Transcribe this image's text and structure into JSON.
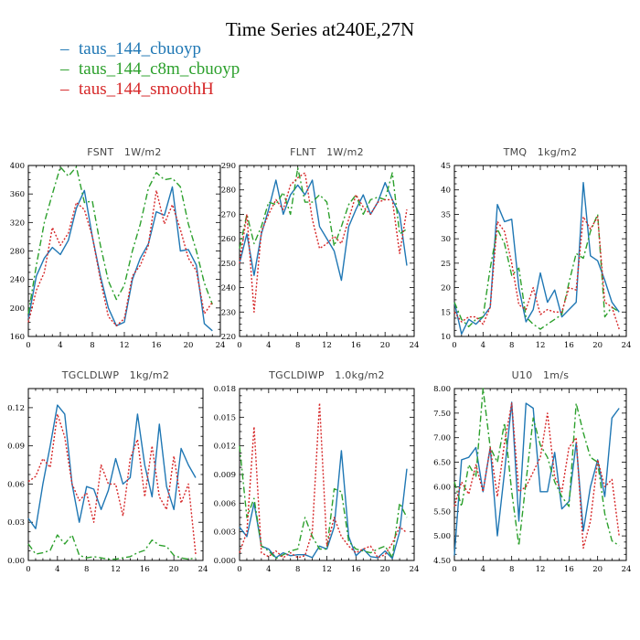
{
  "title": "Time Series at240E,27N",
  "legend": [
    {
      "label": "taus_144_cbuoyp",
      "color": "#1f77b4",
      "dash": "solid"
    },
    {
      "label": "taus_144_c8m_cbuoyp",
      "color": "#2ca02c",
      "dash": "dashdot"
    },
    {
      "label": "taus_144_smoothH",
      "color": "#d62728",
      "dash": "dotted"
    }
  ],
  "chart_data": [
    {
      "type": "line",
      "title": "FSNT 1W/m2",
      "x": [
        0,
        1,
        2,
        3,
        4,
        5,
        6,
        7,
        8,
        9,
        10,
        11,
        12,
        13,
        14,
        15,
        16,
        17,
        18,
        19,
        20,
        21,
        22,
        23
      ],
      "xlim": [
        0,
        24
      ],
      "xticks": [
        0,
        4,
        8,
        12,
        16,
        20,
        24
      ],
      "ylim": [
        160,
        400
      ],
      "yticks": [
        160,
        200,
        240,
        280,
        320,
        360,
        400
      ],
      "yticklabels": [
        "160",
        "200",
        "240",
        "280",
        "320",
        "360",
        "400"
      ],
      "series": [
        {
          "name": "taus_144_cbuoyp",
          "values": [
            185,
            245,
            270,
            285,
            275,
            295,
            340,
            365,
            300,
            245,
            200,
            175,
            180,
            240,
            270,
            290,
            335,
            330,
            370,
            280,
            282,
            260,
            178,
            168
          ]
        },
        {
          "name": "taus_144_c8m_cbuoyp",
          "values": [
            192,
            260,
            320,
            360,
            398,
            385,
            398,
            348,
            350,
            288,
            238,
            212,
            232,
            280,
            318,
            368,
            390,
            380,
            382,
            370,
            318,
            280,
            235,
            205
          ]
        },
        {
          "name": "taus_144_smoothH",
          "values": [
            180,
            225,
            250,
            313,
            288,
            305,
            348,
            338,
            300,
            240,
            188,
            175,
            185,
            245,
            260,
            288,
            365,
            318,
            345,
            310,
            270,
            252,
            192,
            208
          ]
        }
      ]
    },
    {
      "type": "line",
      "title": "FLNT 1W/m2",
      "x": [
        0,
        1,
        2,
        3,
        4,
        5,
        6,
        7,
        8,
        9,
        10,
        11,
        12,
        13,
        14,
        15,
        16,
        17,
        18,
        19,
        20,
        21,
        22,
        23
      ],
      "xlim": [
        0,
        24
      ],
      "xticks": [
        0,
        4,
        8,
        12,
        16,
        20,
        24
      ],
      "ylim": [
        220,
        290
      ],
      "yticks": [
        220,
        230,
        240,
        250,
        260,
        270,
        280,
        290
      ],
      "yticklabels": [
        "220",
        "230",
        "240",
        "250",
        "260",
        "270",
        "280",
        "290"
      ],
      "series": [
        {
          "name": "taus_144_cbuoyp",
          "values": [
            250,
            262,
            245,
            262,
            272,
            284,
            270,
            278,
            282,
            278,
            284,
            265,
            260,
            255,
            243,
            265,
            272,
            278,
            270,
            275,
            283,
            276,
            270,
            249
          ]
        },
        {
          "name": "taus_144_c8m_cbuoyp",
          "values": [
            256,
            270,
            258,
            265,
            275,
            274,
            279,
            270,
            289,
            275,
            275,
            278,
            275,
            257,
            265,
            274,
            278,
            270,
            276,
            277,
            276,
            287,
            262,
            264
          ]
        },
        {
          "name": "taus_144_smoothH",
          "values": [
            250,
            270,
            230,
            263,
            270,
            276,
            272,
            282,
            285,
            287,
            268,
            256,
            258,
            261,
            258,
            268,
            278,
            273,
            270,
            275,
            276,
            276,
            254,
            272
          ]
        }
      ]
    },
    {
      "type": "line",
      "title": "TMQ 1kg/m2",
      "x": [
        0,
        1,
        2,
        3,
        4,
        5,
        6,
        7,
        8,
        9,
        10,
        11,
        12,
        13,
        14,
        15,
        16,
        17,
        18,
        19,
        20,
        21,
        22,
        23
      ],
      "xlim": [
        0,
        24
      ],
      "xticks": [
        0,
        4,
        8,
        12,
        16,
        20,
        24
      ],
      "ylim": [
        10,
        45
      ],
      "yticks": [
        10,
        15,
        20,
        25,
        30,
        35,
        40,
        45
      ],
      "yticklabels": [
        "10",
        "15",
        "20",
        "25",
        "30",
        "35",
        "40",
        "45"
      ],
      "series": [
        {
          "name": "taus_144_cbuoyp",
          "values": [
            17,
            10.5,
            13.5,
            12.5,
            14,
            16,
            37,
            33.5,
            34,
            20,
            13,
            15.5,
            23,
            17,
            19.5,
            14,
            15.5,
            17,
            41.5,
            26.5,
            25.5,
            21.5,
            17,
            15
          ]
        },
        {
          "name": "taus_144_c8m_cbuoyp",
          "values": [
            17,
            13.5,
            12,
            13.5,
            14,
            24,
            32,
            29,
            22.5,
            24,
            14,
            12.5,
            11.5,
            12.5,
            13.5,
            14.5,
            21,
            27,
            26,
            31.5,
            35,
            14,
            16,
            15
          ]
        },
        {
          "name": "taus_144_smoothH",
          "values": [
            15,
            13,
            14,
            14,
            12.5,
            16,
            33.5,
            31.5,
            25,
            16.5,
            15.5,
            20,
            14.5,
            15.5,
            15,
            15,
            20,
            19.5,
            34.5,
            32,
            34.5,
            17,
            16,
            11.5
          ]
        }
      ]
    },
    {
      "type": "line",
      "title": "TGCLDLWP 1kg/m2",
      "x": [
        0,
        1,
        2,
        3,
        4,
        5,
        6,
        7,
        8,
        9,
        10,
        11,
        12,
        13,
        14,
        15,
        16,
        17,
        18,
        19,
        20,
        21,
        22,
        23
      ],
      "xlim": [
        0,
        24
      ],
      "xticks": [
        0,
        4,
        8,
        12,
        16,
        20,
        24
      ],
      "ylim": [
        0,
        0.135
      ],
      "yticks": [
        0,
        0.03,
        0.06,
        0.09,
        0.12
      ],
      "yticklabels": [
        "0.00",
        "0.03",
        "0.06",
        "0.09",
        "0.12"
      ],
      "series": [
        {
          "name": "taus_144_cbuoyp",
          "values": [
            0.033,
            0.025,
            0.06,
            0.09,
            0.122,
            0.115,
            0.06,
            0.03,
            0.058,
            0.056,
            0.04,
            0.055,
            0.08,
            0.06,
            0.065,
            0.115,
            0.075,
            0.05,
            0.107,
            0.058,
            0.04,
            0.088,
            0.075,
            0.065
          ]
        },
        {
          "name": "taus_144_c8m_cbuoyp",
          "values": [
            0.013,
            0.005,
            0.006,
            0.008,
            0.02,
            0.013,
            0.02,
            0.004,
            0.002,
            0.003,
            0.002,
            0.001,
            0.001,
            0.002,
            0.003,
            0.006,
            0.008,
            0.016,
            0.012,
            0.011,
            0.004,
            0.002,
            0.001,
            0.002
          ]
        },
        {
          "name": "taus_144_smoothH",
          "values": [
            0.062,
            0.066,
            0.08,
            0.073,
            0.115,
            0.097,
            0.06,
            0.047,
            0.053,
            0.03,
            0.075,
            0.06,
            0.06,
            0.035,
            0.08,
            0.095,
            0.05,
            0.09,
            0.05,
            0.04,
            0.082,
            0.045,
            0.06,
            0.005
          ]
        }
      ]
    },
    {
      "type": "line",
      "title": "TGCLDIWP 1.0kg/m2",
      "x": [
        0,
        1,
        2,
        3,
        4,
        5,
        6,
        7,
        8,
        9,
        10,
        11,
        12,
        13,
        14,
        15,
        16,
        17,
        18,
        19,
        20,
        21,
        22,
        23
      ],
      "xlim": [
        0,
        24
      ],
      "xticks": [
        0,
        4,
        8,
        12,
        16,
        20,
        24
      ],
      "ylim": [
        0,
        0.018
      ],
      "yticks": [
        0,
        0.003,
        0.006,
        0.009,
        0.012,
        0.015,
        0.018
      ],
      "yticklabels": [
        "0.000",
        "0.003",
        "0.006",
        "0.009",
        "0.012",
        "0.015",
        "0.018"
      ],
      "series": [
        {
          "name": "taus_144_cbuoyp",
          "values": [
            0.0035,
            0.0025,
            0.006,
            0.0015,
            0.0012,
            0.0003,
            0.0008,
            0.0005,
            0.0006,
            0.0006,
            0.0003,
            0.0015,
            0.0012,
            0.0035,
            0.0115,
            0.0025,
            0.0005,
            0.0012,
            0.0004,
            0.0003,
            0.001,
            0.0002,
            0.003,
            0.0096
          ]
        },
        {
          "name": "taus_144_c8m_cbuoyp",
          "values": [
            0.012,
            0.0045,
            0.0065,
            0.0015,
            0.001,
            0.0002,
            0.0006,
            0.001,
            0.0012,
            0.0045,
            0.0025,
            0.0012,
            0.0012,
            0.0075,
            0.0072,
            0.002,
            0.0012,
            0.001,
            0.0008,
            0.0012,
            0.0015,
            0.0003,
            0.006,
            0.0045
          ]
        },
        {
          "name": "taus_144_smoothH",
          "values": [
            0.0008,
            0.003,
            0.014,
            0.0008,
            0.0004,
            0.001,
            0.0003,
            0.0008,
            0.0003,
            0.0005,
            0.003,
            0.0165,
            0.0015,
            0.0045,
            0.0025,
            0.0015,
            0.0008,
            0.0012,
            0.0015,
            0.0003,
            0.0006,
            0.0018,
            0.0035,
            0.0029
          ]
        }
      ]
    },
    {
      "type": "line",
      "title": "U10 1m/s",
      "x": [
        0,
        1,
        2,
        3,
        4,
        5,
        6,
        7,
        8,
        9,
        10,
        11,
        12,
        13,
        14,
        15,
        16,
        17,
        18,
        19,
        20,
        21,
        22,
        23
      ],
      "xlim": [
        0,
        24
      ],
      "xticks": [
        0,
        4,
        8,
        12,
        16,
        20,
        24
      ],
      "ylim": [
        4.5,
        8.0
      ],
      "yticks": [
        4.5,
        5.0,
        5.5,
        6.0,
        6.5,
        7.0,
        7.5,
        8.0
      ],
      "yticklabels": [
        "4.50",
        "5.00",
        "5.50",
        "6.00",
        "6.50",
        "7.00",
        "7.50",
        "8.00"
      ],
      "series": [
        {
          "name": "taus_144_cbuoyp",
          "values": [
            4.6,
            6.55,
            6.6,
            6.8,
            5.9,
            6.8,
            5.0,
            6.3,
            7.72,
            5.3,
            7.7,
            7.6,
            5.9,
            5.9,
            6.7,
            5.55,
            5.7,
            6.9,
            5.1,
            6.0,
            6.55,
            5.8,
            7.4,
            7.6
          ]
        },
        {
          "name": "taus_144_c8m_cbuoyp",
          "values": [
            6.1,
            5.6,
            6.45,
            6.2,
            8.0,
            6.8,
            6.5,
            7.3,
            5.9,
            4.8,
            6.1,
            7.4,
            6.85,
            6.6,
            6.1,
            5.8,
            5.6,
            7.7,
            7.1,
            6.6,
            6.5,
            5.45,
            4.9,
            4.8
          ]
        },
        {
          "name": "taus_144_smoothH",
          "values": [
            5.6,
            6.1,
            5.85,
            6.45,
            5.9,
            6.8,
            5.8,
            6.9,
            7.7,
            5.9,
            6.0,
            6.3,
            6.6,
            7.5,
            6.2,
            5.9,
            6.8,
            7.0,
            4.75,
            5.3,
            6.55,
            6.0,
            6.15,
            5.0
          ]
        }
      ]
    }
  ]
}
